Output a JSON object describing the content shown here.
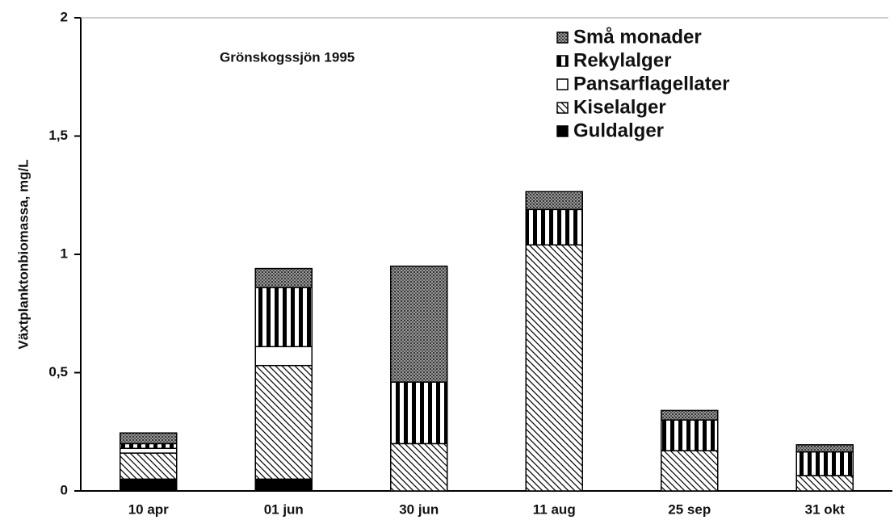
{
  "chart_data": {
    "type": "stacked_bar",
    "ylabel": "Växtplanktonbiomassa,  mg/L",
    "annotation": "Grönskogssjön 1995",
    "categories": [
      "10 apr",
      "01 jun",
      "30 jun",
      "11 aug",
      "25 sep",
      "31 okt"
    ],
    "series": [
      {
        "name": "Guldalger",
        "color": "#000000",
        "pattern": "solid",
        "values": [
          0.05,
          0.05,
          0,
          0,
          0,
          0
        ]
      },
      {
        "name": "Kiselalger",
        "color": "#000000",
        "pattern": "diagonal",
        "values": [
          0.11,
          0.48,
          0.2,
          1.04,
          0.17,
          0.065
        ]
      },
      {
        "name": "Pansarflagellater",
        "color": "#000000",
        "pattern": "none",
        "values": [
          0.02,
          0.08,
          0,
          0,
          0,
          0
        ]
      },
      {
        "name": "Rekylalger",
        "color": "#000000",
        "pattern": "vertical",
        "values": [
          0.02,
          0.25,
          0.26,
          0.15,
          0.13,
          0.1
        ]
      },
      {
        "name": "Små monader",
        "color": "#000000",
        "pattern": "dots",
        "values": [
          0.045,
          0.08,
          0.49,
          0.075,
          0.04,
          0.03
        ]
      }
    ],
    "ylim": [
      0,
      2
    ],
    "yticks": [
      0,
      {
        "value": 0.5,
        "label": "0,5"
      },
      1,
      {
        "value": 1.5,
        "label": "1,5"
      },
      2
    ],
    "legend": "upper right"
  }
}
